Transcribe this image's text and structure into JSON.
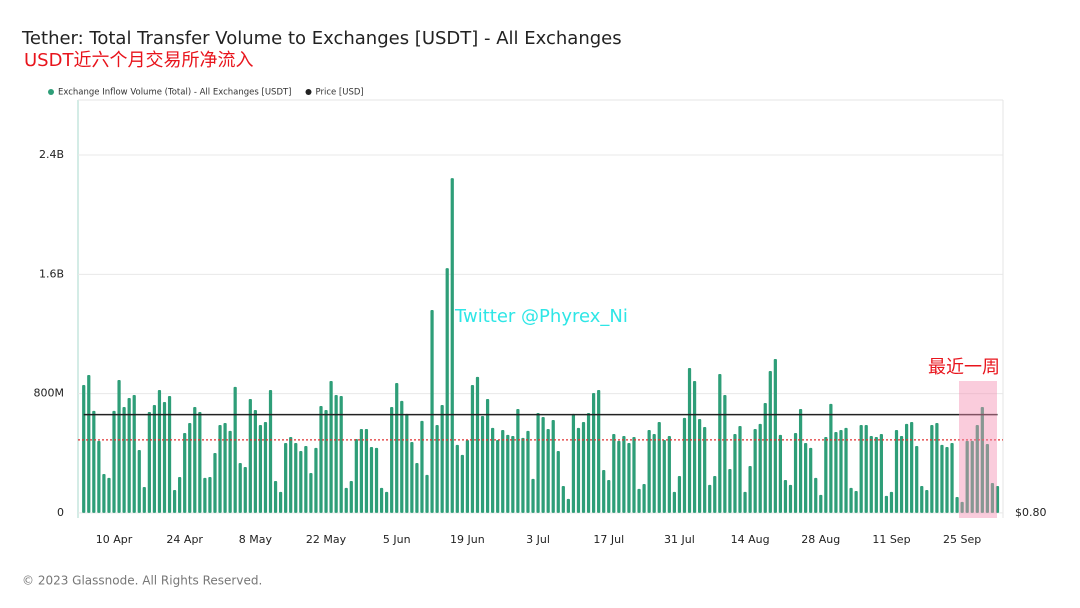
{
  "chart_data": {
    "type": "bar",
    "title": "Tether: Total Transfer Volume to Exchanges [USDT] - All Exchanges",
    "subtitle": "USDT近六个月交易所净流入",
    "watermark": "Twitter @Phyrex_Ni",
    "annotation": "最近一周",
    "footer": "© 2023 Glassnode. All Rights Reserved.",
    "categories": [
      null,
      null,
      null,
      null,
      null,
      null,
      "10 Apr",
      null,
      null,
      null,
      null,
      null,
      null,
      null,
      null,
      null,
      null,
      null,
      null,
      null,
      "24 Apr",
      null,
      null,
      null,
      null,
      null,
      null,
      null,
      null,
      null,
      null,
      null,
      null,
      null,
      "8 May",
      null,
      null,
      null,
      null,
      null,
      null,
      null,
      null,
      null,
      null,
      null,
      null,
      null,
      "22 May",
      null,
      null,
      null,
      null,
      null,
      null,
      null,
      null,
      null,
      null,
      null,
      null,
      null,
      "5 Jun",
      null,
      null,
      null,
      null,
      null,
      null,
      null,
      null,
      null,
      null,
      null,
      null,
      null,
      "19 Jun",
      null,
      null,
      null,
      null,
      null,
      null,
      null,
      null,
      null,
      null,
      null,
      null,
      null,
      "3 Jul",
      null,
      null,
      null,
      null,
      null,
      null,
      null,
      null,
      null,
      null,
      null,
      null,
      null,
      "17 Jul",
      null,
      null,
      null,
      null,
      null,
      null,
      null,
      null,
      null,
      null,
      null,
      null,
      null,
      "31 Jul",
      null,
      null,
      null,
      null,
      null,
      null,
      null,
      null,
      null,
      null,
      null,
      null,
      null,
      "14 Aug",
      null,
      null,
      null,
      null,
      null,
      null,
      null,
      null,
      null,
      null,
      null,
      null,
      null,
      "28 Aug",
      null,
      null,
      null,
      null,
      null,
      null,
      null,
      null,
      null,
      null,
      null,
      null,
      null,
      "11 Sep",
      null,
      null,
      null,
      null,
      null,
      null,
      null,
      null,
      null,
      null,
      null,
      null,
      null,
      "25 Sep",
      null,
      null,
      null,
      null,
      null,
      null,
      null
    ],
    "series": [
      {
        "name": "Exchange Inflow Volume (Total) - All Exchanges [USDT]",
        "color": "#2e9e78",
        "values": [
          858,
          925,
          684,
          483,
          261,
          235,
          684,
          891,
          710,
          771,
          791,
          422,
          174,
          677,
          724,
          824,
          744,
          784,
          154,
          241,
          536,
          603,
          710,
          677,
          235,
          241,
          402,
          590,
          603,
          550,
          845,
          335,
          308,
          764,
          690,
          590,
          610,
          824,
          214,
          141,
          469,
          509,
          469,
          415,
          449,
          268,
          436,
          717,
          690,
          885,
          791,
          784,
          168,
          214,
          496,
          563,
          563,
          442,
          436,
          168,
          141,
          710,
          871,
          751,
          664,
          476,
          335,
          617,
          255,
          1361,
          590,
          724,
          1642,
          2245,
          456,
          389,
          489,
          858,
          912,
          650,
          764,
          570,
          489,
          556,
          523,
          516,
          697,
          503,
          550,
          228,
          670,
          643,
          563,
          623,
          415,
          181,
          94,
          664,
          570,
          610,
          670,
          804,
          824,
          288,
          221,
          529,
          483,
          516,
          469,
          509,
          161,
          194,
          556,
          529,
          610,
          489,
          516,
          141,
          248,
          637,
          972,
          885,
          630,
          576,
          188,
          248,
          932,
          791,
          295,
          529,
          583,
          141,
          315,
          563,
          597,
          737,
          952,
          1032,
          523,
          221,
          188,
          536,
          697,
          469,
          436,
          235,
          121,
          509,
          731,
          543,
          556,
          570,
          168,
          147,
          590,
          590,
          516,
          509,
          529,
          114,
          141,
          556,
          516,
          597,
          610,
          449,
          181,
          154,
          590,
          603,
          456,
          442,
          469,
          107,
          74,
          483,
          483,
          590,
          710,
          462,
          201,
          181
        ]
      },
      {
        "name": "Price [USD]",
        "color": "#222222",
        "axis": "y2",
        "values": [
          1,
          1,
          1,
          1,
          1,
          1,
          1,
          1,
          1,
          1,
          1,
          1,
          1,
          1,
          1,
          1,
          1,
          1,
          1,
          1,
          1,
          1,
          1,
          1,
          1,
          1,
          1,
          1,
          1,
          1,
          1,
          1,
          1,
          1,
          1,
          1,
          1,
          1,
          1,
          1,
          1,
          1,
          1,
          1,
          1,
          1,
          1,
          1,
          1,
          1,
          1,
          1,
          1,
          1,
          1,
          1,
          1,
          1,
          1,
          1,
          1,
          1,
          1,
          1,
          1,
          1,
          1,
          1,
          1,
          1,
          1,
          1,
          1,
          1,
          1,
          1,
          1,
          1,
          1,
          1,
          1,
          1,
          1,
          1,
          1,
          1,
          1,
          1,
          1,
          1,
          1,
          1,
          1,
          1,
          1,
          1,
          1,
          1,
          1,
          1,
          1,
          1,
          1,
          1,
          1,
          1,
          1,
          1,
          1,
          1,
          1,
          1,
          1,
          1,
          1,
          1,
          1,
          1,
          1,
          1,
          1,
          1,
          1,
          1,
          1,
          1,
          1,
          1,
          1,
          1,
          1,
          1,
          1,
          1,
          1,
          1,
          1,
          1,
          1,
          1,
          1,
          1,
          1,
          1,
          1,
          1,
          1,
          1,
          1,
          1,
          1,
          1,
          1,
          1,
          1,
          1,
          1,
          1,
          1,
          1,
          1,
          1,
          1,
          1,
          1,
          1,
          1,
          1,
          1,
          1,
          1,
          1,
          1,
          1,
          1,
          1,
          1,
          1,
          1,
          1,
          1,
          1
        ]
      }
    ],
    "reference_line": {
      "value": 490,
      "color": "#e03030"
    },
    "ylim": [
      -34,
      2769
    ],
    "yticks": [
      0,
      {
        "value": 800,
        "label": "800M"
      },
      {
        "value": 1600,
        "label": "1.6B"
      },
      {
        "value": 2400,
        "label": "2.4B"
      }
    ],
    "y2lim": [
      0.8,
      1.65
    ],
    "y2ticks": [
      {
        "value": 0.8,
        "label": "$0.80"
      }
    ],
    "grid": true
  }
}
